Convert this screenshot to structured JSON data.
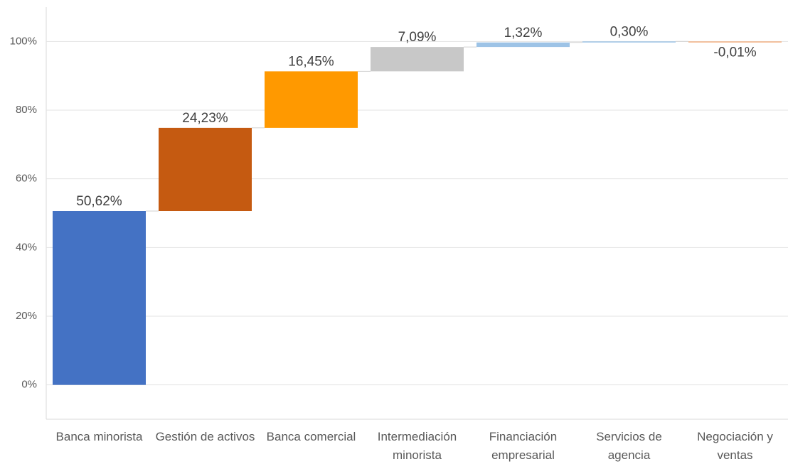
{
  "chart_data": {
    "type": "waterfall",
    "categories": [
      "Banca minorista",
      "Gestión de activos",
      "Banca comercial",
      "Intermediación minorista",
      "Financiación empresarial",
      "Servicios de agencia",
      "Negociación y ventas"
    ],
    "values": [
      50.62,
      24.23,
      16.45,
      7.09,
      1.32,
      0.3,
      -0.01
    ],
    "value_labels": [
      "50,62%",
      "24,23%",
      "16,45%",
      "7,09%",
      "1,32%",
      "0,30%",
      "-0,01%"
    ],
    "colors": [
      "#4472c4",
      "#c55a11",
      "#ff9900",
      "#c8c8c8",
      "#9dc3e6",
      "#9dc3e6",
      "#f4b183"
    ],
    "ylim": [
      -10,
      110
    ],
    "yticks": [
      {
        "value": 0,
        "label": "0%"
      },
      {
        "value": 20,
        "label": "20%"
      },
      {
        "value": 40,
        "label": "40%"
      },
      {
        "value": 60,
        "label": "60%"
      },
      {
        "value": 80,
        "label": "80%"
      },
      {
        "value": 100,
        "label": "100%"
      }
    ],
    "grid": true
  }
}
